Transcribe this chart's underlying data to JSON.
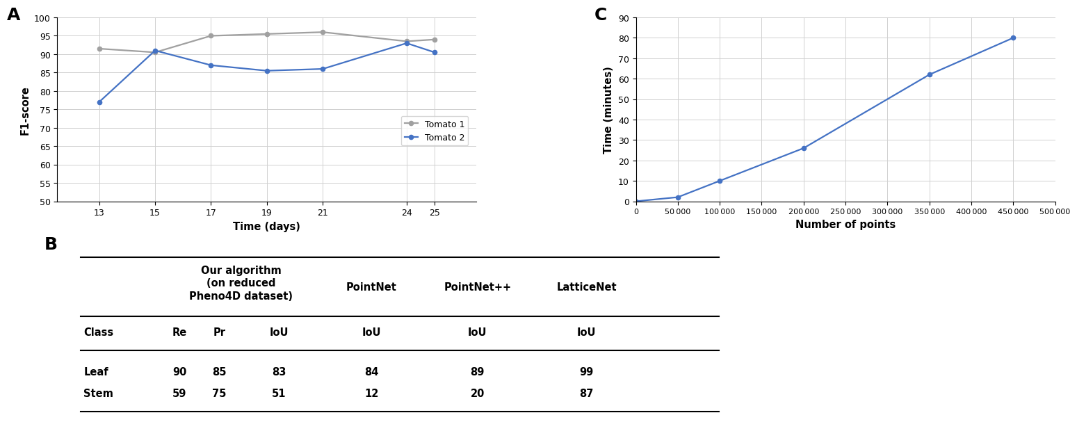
{
  "panel_A": {
    "label": "A",
    "tomato1_x": [
      13,
      15,
      17,
      19,
      21,
      24,
      25
    ],
    "tomato1_y": [
      91.5,
      90.5,
      95.0,
      95.5,
      96.0,
      93.5,
      94.0
    ],
    "tomato2_x": [
      13,
      15,
      17,
      19,
      21,
      24,
      25
    ],
    "tomato2_y": [
      77.0,
      91.0,
      87.0,
      85.5,
      86.0,
      93.0,
      90.5
    ],
    "tomato1_color": "#a0a0a0",
    "tomato2_color": "#4472c4",
    "xlabel": "Time (days)",
    "ylabel": "F1-score",
    "ylim": [
      50,
      100
    ],
    "yticks": [
      50,
      55,
      60,
      65,
      70,
      75,
      80,
      85,
      90,
      95,
      100
    ],
    "xticks": [
      13,
      15,
      17,
      19,
      21,
      24,
      25
    ],
    "legend_labels": [
      "Tomato 1",
      "Tomato 2"
    ]
  },
  "panel_C": {
    "label": "C",
    "x": [
      0,
      50000,
      100000,
      200000,
      350000,
      450000
    ],
    "y": [
      0,
      2,
      10,
      26,
      62,
      80
    ],
    "color": "#4472c4",
    "xlabel": "Number of points",
    "ylabel": "Time (minutes)",
    "ylim": [
      0,
      90
    ],
    "yticks": [
      0,
      10,
      20,
      30,
      40,
      50,
      60,
      70,
      80,
      90
    ],
    "xlim": [
      0,
      500000
    ],
    "xticks": [
      0,
      50000,
      100000,
      150000,
      200000,
      250000,
      300000,
      350000,
      400000,
      450000,
      500000
    ]
  },
  "panel_B": {
    "label": "B",
    "col_header": [
      "",
      "",
      "",
      "",
      "PointNet",
      "PointNet++",
      "LatticeNet"
    ],
    "col_header2": [
      "Class",
      "Re",
      "Pr",
      "IoU",
      "IoU",
      "IoU",
      "IoU"
    ],
    "rows": [
      [
        "Leaf",
        "90",
        "85",
        "83",
        "84",
        "89",
        "99"
      ],
      [
        "Stem",
        "59",
        "75",
        "51",
        "12",
        "20",
        "87"
      ]
    ],
    "algo_header": "Our algorithm\n(on reduced\nPheno4D dataset)"
  },
  "background_color": "#ffffff"
}
